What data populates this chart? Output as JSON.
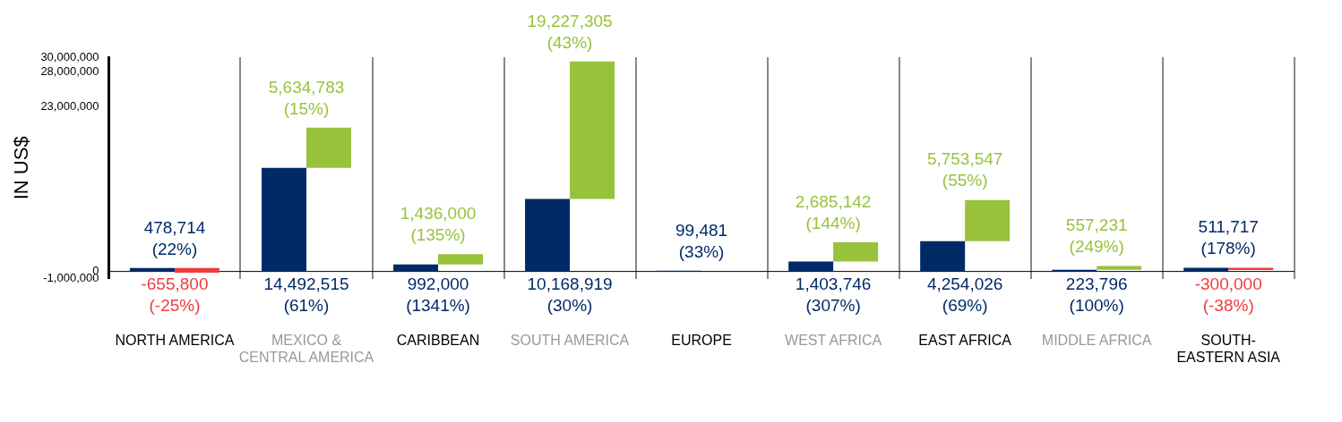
{
  "chart_data": {
    "type": "bar",
    "ylabel": "IN US$",
    "categories": [
      "NORTH AMERICA",
      "MEXICO & CENTRAL AMERICA",
      "CARIBBEAN",
      "SOUTH AMERICA",
      "EUROPE",
      "WEST AFRICA",
      "EAST AFRICA",
      "MIDDLE AFRICA",
      "SOUTH-EASTERN ASIA"
    ],
    "series": [
      {
        "color": "#002a66",
        "values": [
          478714,
          14492515,
          992000,
          10168919,
          99481,
          1403746,
          4254026,
          223796,
          511717
        ],
        "value_labels": [
          "478,714\n(22%)",
          "14,492,515\n(61%)",
          "992,000\n(1341%)",
          "10,168,919\n(30%)",
          "99,481\n(33%)",
          "1,403,746\n(307%)",
          "4,254,026\n(69%)",
          "223,796\n(100%)",
          "511,717\n(178%)"
        ]
      },
      {
        "colors": [
          "#f03c3c",
          "#98c23c",
          "#98c23c",
          "#98c23c",
          "#98c23c",
          "#98c23c",
          "#98c23c",
          "#98c23c",
          "#f03c3c"
        ],
        "values": [
          -655800,
          5634783,
          1436000,
          19227305,
          null,
          2685142,
          5753547,
          557231,
          -300000
        ],
        "base": [
          478714,
          14492515,
          992000,
          10168919,
          null,
          1403746,
          4254026,
          223796,
          511717
        ],
        "value_labels": [
          "-655,800\n(-25%)",
          "5,634,783\n(15%)",
          "1,436,000\n(135%)",
          "19,227,305\n(43%)",
          null,
          "2,685,142\n(144%)",
          "5,753,547\n(55%)",
          "557,231\n(249%)",
          "-300,000\n(-38%)"
        ]
      }
    ],
    "ylim": [
      -1000000,
      30000000
    ],
    "yticks": [
      {
        "value": -1000000,
        "label": "-1,000,000"
      },
      0,
      {
        "value": 23000000,
        "label": "23,000,000"
      },
      {
        "value": 28000000,
        "label": "28,000,000"
      },
      {
        "value": 30000000,
        "label": "30,000,000"
      }
    ],
    "grid": "x",
    "legend": false
  }
}
